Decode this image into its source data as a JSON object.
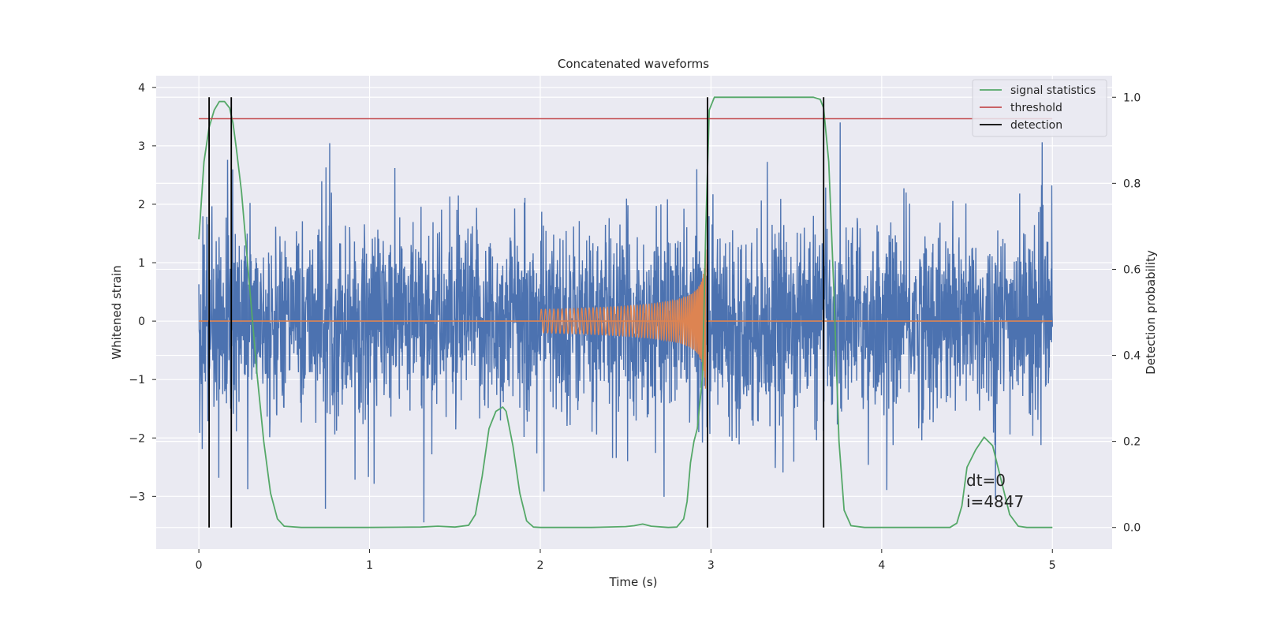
{
  "chart_data": {
    "type": "line",
    "title": "Concatenated waveforms",
    "xlabel": "Time (s)",
    "ylabel": "Whitened strain",
    "y2label": "Detection probability",
    "xlim": [
      -0.25,
      5.35
    ],
    "ylim": [
      -3.9,
      4.2
    ],
    "y2lim": [
      -0.05,
      1.05
    ],
    "xticks": [
      0,
      1,
      2,
      3,
      4,
      5
    ],
    "xtick_labels": [
      "0",
      "1",
      "2",
      "3",
      "4",
      "5"
    ],
    "yticks": [
      -3,
      -2,
      -1,
      0,
      1,
      2,
      3,
      4
    ],
    "ytick_labels": [
      "−3",
      "−2",
      "−1",
      "0",
      "1",
      "2",
      "3",
      "4"
    ],
    "y2ticks": [
      0.0,
      0.2,
      0.4,
      0.6,
      0.8,
      1.0
    ],
    "y2tick_labels": [
      "0.0",
      "0.2",
      "0.4",
      "0.6",
      "0.8",
      "1.0"
    ],
    "grid": true,
    "legend_position": "upper-right",
    "legend": [
      {
        "label": "signal statistics",
        "color": "#55a868"
      },
      {
        "label": "threshold",
        "color": "#c44e52"
      },
      {
        "label": "detection",
        "color": "#000000"
      }
    ],
    "strain": {
      "color": "#4c72b0",
      "x_range": [
        0,
        5
      ],
      "std": 0.8,
      "max_peak": 3.4,
      "min_peak": -3.5
    },
    "injected_signal": {
      "color": "#dd8452",
      "start": 2.0,
      "merger": 2.97,
      "start_amplitude": 0.2,
      "peak_amplitude": 1.25,
      "zero_line_range": [
        0,
        5
      ]
    },
    "threshold": {
      "y": 0.95,
      "x_range": [
        0,
        5
      ]
    },
    "detections": [
      0.06,
      0.19,
      2.98,
      3.66
    ],
    "signal_statistics": {
      "x": [
        0.0,
        0.03,
        0.06,
        0.09,
        0.12,
        0.15,
        0.18,
        0.2,
        0.22,
        0.25,
        0.28,
        0.31,
        0.34,
        0.38,
        0.42,
        0.46,
        0.5,
        0.6,
        1.0,
        1.3,
        1.4,
        1.5,
        1.58,
        1.62,
        1.66,
        1.7,
        1.74,
        1.78,
        1.8,
        1.84,
        1.88,
        1.92,
        1.96,
        2.0,
        2.3,
        2.5,
        2.55,
        2.6,
        2.65,
        2.75,
        2.8,
        2.84,
        2.86,
        2.88,
        2.9,
        2.92,
        2.95,
        2.97,
        2.99,
        3.02,
        3.1,
        3.3,
        3.6,
        3.64,
        3.66,
        3.69,
        3.72,
        3.75,
        3.78,
        3.82,
        3.9,
        4.4,
        4.44,
        4.47,
        4.5,
        4.55,
        4.6,
        4.65,
        4.7,
        4.75,
        4.8,
        4.85,
        4.9,
        5.0
      ],
      "y": [
        0.67,
        0.85,
        0.93,
        0.97,
        0.99,
        0.99,
        0.975,
        0.94,
        0.88,
        0.78,
        0.64,
        0.5,
        0.36,
        0.2,
        0.08,
        0.02,
        0.003,
        0.0,
        0.0,
        0.001,
        0.003,
        0.001,
        0.005,
        0.03,
        0.12,
        0.23,
        0.27,
        0.28,
        0.27,
        0.19,
        0.08,
        0.015,
        0.001,
        0.0,
        0.0,
        0.002,
        0.004,
        0.008,
        0.003,
        0.0,
        0.001,
        0.02,
        0.06,
        0.15,
        0.2,
        0.23,
        0.35,
        0.7,
        0.97,
        1.0,
        1.0,
        1.0,
        1.0,
        0.995,
        0.975,
        0.85,
        0.55,
        0.2,
        0.04,
        0.004,
        0.0,
        0.0,
        0.01,
        0.05,
        0.14,
        0.18,
        0.21,
        0.19,
        0.11,
        0.03,
        0.003,
        0.0,
        0.0,
        0.0
      ]
    },
    "annotations": [
      "dt=0",
      "i=4847"
    ]
  }
}
